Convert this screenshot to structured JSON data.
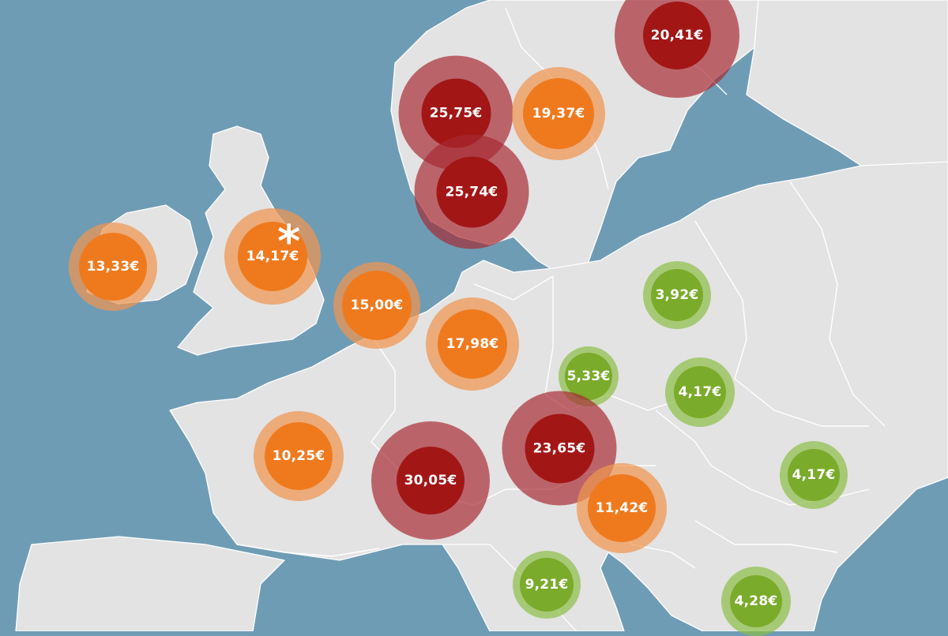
{
  "map": {
    "colors": {
      "sea": "#6f9cb5",
      "land": "#e3e3e3",
      "border": "#ffffff",
      "tiers": {
        "high": {
          "inner": "#a31616",
          "outer": "rgba(166,40,48,0.68)"
        },
        "medium": {
          "inner": "#ef7a1e",
          "outer": "rgba(240,150,80,0.72)"
        },
        "low": {
          "inner": "#7aab2a",
          "outer": "rgba(140,190,70,0.70)"
        }
      }
    },
    "asterisk_text": "*",
    "prices": [
      {
        "id": "finland",
        "label": "20,41€",
        "tier": "high"
      },
      {
        "id": "norway",
        "label": "25,75€",
        "tier": "high"
      },
      {
        "id": "sweden",
        "label": "19,37€",
        "tier": "medium"
      },
      {
        "id": "denmark",
        "label": "25,74€",
        "tier": "high"
      },
      {
        "id": "ireland",
        "label": "13,33€",
        "tier": "medium"
      },
      {
        "id": "united-kingdom",
        "label": "14,17€",
        "tier": "medium",
        "asterisk": true
      },
      {
        "id": "netherlands",
        "label": "15,00€",
        "tier": "medium"
      },
      {
        "id": "germany",
        "label": "17,98€",
        "tier": "medium"
      },
      {
        "id": "poland",
        "label": "3,92€",
        "tier": "low"
      },
      {
        "id": "czech-republic",
        "label": "5,33€",
        "tier": "low"
      },
      {
        "id": "slovakia",
        "label": "4,17€",
        "tier": "low"
      },
      {
        "id": "austria",
        "label": "23,65€",
        "tier": "high"
      },
      {
        "id": "france",
        "label": "10,25€",
        "tier": "medium"
      },
      {
        "id": "switzerland",
        "label": "30,05€",
        "tier": "high"
      },
      {
        "id": "romania",
        "label": "4,17€",
        "tier": "low"
      },
      {
        "id": "slovenia",
        "label": "11,42€",
        "tier": "medium"
      },
      {
        "id": "italy",
        "label": "9,21€",
        "tier": "low"
      },
      {
        "id": "bulgaria",
        "label": "4,28€",
        "tier": "low"
      }
    ]
  }
}
